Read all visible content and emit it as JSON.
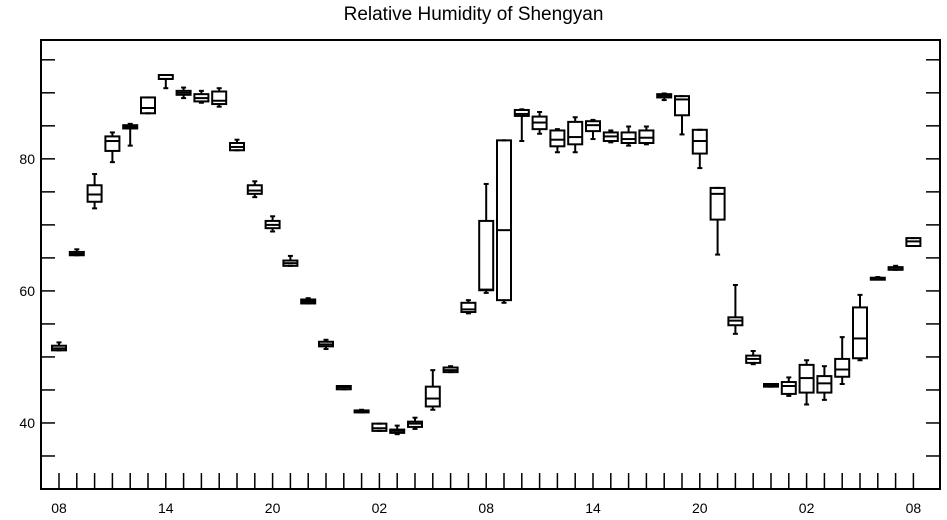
{
  "chart_data": {
    "type": "boxplot",
    "title": "Relative Humidity of Shengyan",
    "xlabel": "",
    "ylabel": "",
    "ylim": [
      30,
      98
    ],
    "y_ticks": [
      40,
      60,
      80
    ],
    "x_tick_labels": [
      "08",
      "14",
      "20",
      "02",
      "08",
      "14",
      "20",
      "02",
      "08"
    ],
    "x_tick_positions": [
      0,
      6,
      12,
      18,
      24,
      30,
      36,
      42,
      48
    ],
    "grid": false,
    "boxes": [
      {
        "x": 0,
        "whisker_low": 51.0,
        "q1": 51.0,
        "median": 51.3,
        "q3": 51.7,
        "whisker_high": 52.2
      },
      {
        "x": 1,
        "whisker_low": 65.4,
        "q1": 65.4,
        "median": 65.6,
        "q3": 65.9,
        "whisker_high": 66.3
      },
      {
        "x": 2,
        "whisker_low": 72.5,
        "q1": 73.5,
        "median": 74.6,
        "q3": 76.0,
        "whisker_high": 77.7
      },
      {
        "x": 3,
        "whisker_low": 79.5,
        "q1": 81.2,
        "median": 82.7,
        "q3": 83.4,
        "whisker_high": 84.0
      },
      {
        "x": 4,
        "whisker_low": 82.0,
        "q1": 84.6,
        "median": 84.9,
        "q3": 85.1,
        "whisker_high": 85.3
      },
      {
        "x": 5,
        "whisker_low": 86.9,
        "q1": 86.9,
        "median": 87.7,
        "q3": 89.3,
        "whisker_high": 89.3
      },
      {
        "x": 6,
        "whisker_low": 90.7,
        "q1": 92.1,
        "median": 92.1,
        "q3": 92.7,
        "whisker_high": 92.7
      },
      {
        "x": 7,
        "whisker_low": 89.2,
        "q1": 89.7,
        "median": 90.0,
        "q3": 90.3,
        "whisker_high": 90.8
      },
      {
        "x": 8,
        "whisker_low": 88.5,
        "q1": 88.7,
        "median": 89.2,
        "q3": 89.8,
        "whisker_high": 90.3
      },
      {
        "x": 9,
        "whisker_low": 87.9,
        "q1": 88.3,
        "median": 88.8,
        "q3": 90.2,
        "whisker_high": 90.7
      },
      {
        "x": 10,
        "whisker_low": 81.3,
        "q1": 81.3,
        "median": 81.8,
        "q3": 82.4,
        "whisker_high": 82.9
      },
      {
        "x": 11,
        "whisker_low": 74.2,
        "q1": 74.7,
        "median": 75.2,
        "q3": 76.0,
        "whisker_high": 76.6
      },
      {
        "x": 12,
        "whisker_low": 69.0,
        "q1": 69.5,
        "median": 70.0,
        "q3": 70.6,
        "whisker_high": 71.3
      },
      {
        "x": 13,
        "whisker_low": 63.8,
        "q1": 63.8,
        "median": 64.2,
        "q3": 64.6,
        "whisker_high": 65.3
      },
      {
        "x": 14,
        "whisker_low": 58.1,
        "q1": 58.1,
        "median": 58.4,
        "q3": 58.7,
        "whisker_high": 58.9
      },
      {
        "x": 15,
        "whisker_low": 51.2,
        "q1": 51.6,
        "median": 51.9,
        "q3": 52.3,
        "whisker_high": 52.6
      },
      {
        "x": 16,
        "whisker_low": 45.1,
        "q1": 45.1,
        "median": 45.4,
        "q3": 45.6,
        "whisker_high": 45.6
      },
      {
        "x": 17,
        "whisker_low": 41.6,
        "q1": 41.7,
        "median": 41.8,
        "q3": 41.9,
        "whisker_high": 42.0
      },
      {
        "x": 18,
        "whisker_low": 38.8,
        "q1": 38.8,
        "median": 39.2,
        "q3": 39.9,
        "whisker_high": 39.9
      },
      {
        "x": 19,
        "whisker_low": 38.3,
        "q1": 38.5,
        "median": 38.8,
        "q3": 39.0,
        "whisker_high": 39.6
      },
      {
        "x": 20,
        "whisker_low": 39.1,
        "q1": 39.4,
        "median": 39.9,
        "q3": 40.2,
        "whisker_high": 40.8
      },
      {
        "x": 21,
        "whisker_low": 42.0,
        "q1": 42.5,
        "median": 43.7,
        "q3": 45.5,
        "whisker_high": 48.0
      },
      {
        "x": 22,
        "whisker_low": 47.7,
        "q1": 47.7,
        "median": 48.0,
        "q3": 48.4,
        "whisker_high": 48.6
      },
      {
        "x": 23,
        "whisker_low": 56.6,
        "q1": 56.8,
        "median": 57.2,
        "q3": 58.2,
        "whisker_high": 58.6
      },
      {
        "x": 24,
        "whisker_low": 59.7,
        "q1": 60.1,
        "median": 60.2,
        "q3": 70.6,
        "whisker_high": 76.2
      },
      {
        "x": 25,
        "whisker_low": 58.2,
        "q1": 58.6,
        "median": 69.2,
        "q3": 82.8,
        "whisker_high": 82.8
      },
      {
        "x": 26,
        "whisker_low": 82.7,
        "q1": 86.5,
        "median": 86.8,
        "q3": 87.4,
        "whisker_high": 87.5
      },
      {
        "x": 27,
        "whisker_low": 83.8,
        "q1": 84.5,
        "median": 85.5,
        "q3": 86.4,
        "whisker_high": 87.1
      },
      {
        "x": 28,
        "whisker_low": 81.0,
        "q1": 81.9,
        "median": 82.9,
        "q3": 84.3,
        "whisker_high": 84.5
      },
      {
        "x": 29,
        "whisker_low": 81.0,
        "q1": 82.2,
        "median": 83.3,
        "q3": 85.6,
        "whisker_high": 86.3
      },
      {
        "x": 30,
        "whisker_low": 83.0,
        "q1": 84.2,
        "median": 85.1,
        "q3": 85.7,
        "whisker_high": 85.9
      },
      {
        "x": 31,
        "whisker_low": 82.5,
        "q1": 82.7,
        "median": 83.4,
        "q3": 84.0,
        "whisker_high": 84.3
      },
      {
        "x": 32,
        "whisker_low": 82.0,
        "q1": 82.4,
        "median": 83.0,
        "q3": 84.0,
        "whisker_high": 84.9
      },
      {
        "x": 33,
        "whisker_low": 82.2,
        "q1": 82.4,
        "median": 83.2,
        "q3": 84.3,
        "whisker_high": 84.9
      },
      {
        "x": 34,
        "whisker_low": 88.9,
        "q1": 89.3,
        "median": 89.6,
        "q3": 89.8,
        "whisker_high": 89.9
      },
      {
        "x": 35,
        "whisker_low": 83.7,
        "q1": 86.6,
        "median": 89.0,
        "q3": 89.5,
        "whisker_high": 89.5
      },
      {
        "x": 36,
        "whisker_low": 78.6,
        "q1": 80.8,
        "median": 82.7,
        "q3": 84.4,
        "whisker_high": 84.4
      },
      {
        "x": 37,
        "whisker_low": 65.5,
        "q1": 70.8,
        "median": 74.7,
        "q3": 75.6,
        "whisker_high": 75.6
      },
      {
        "x": 38,
        "whisker_low": 53.5,
        "q1": 54.8,
        "median": 55.5,
        "q3": 56.0,
        "whisker_high": 60.9
      },
      {
        "x": 39,
        "whisker_low": 48.9,
        "q1": 49.1,
        "median": 49.7,
        "q3": 50.2,
        "whisker_high": 50.9
      },
      {
        "x": 40,
        "whisker_low": 45.5,
        "q1": 45.5,
        "median": 45.7,
        "q3": 45.9,
        "whisker_high": 45.9
      },
      {
        "x": 41,
        "whisker_low": 44.1,
        "q1": 44.4,
        "median": 45.6,
        "q3": 46.2,
        "whisker_high": 46.9
      },
      {
        "x": 42,
        "whisker_low": 42.8,
        "q1": 44.6,
        "median": 46.8,
        "q3": 48.8,
        "whisker_high": 49.5
      },
      {
        "x": 43,
        "whisker_low": 43.5,
        "q1": 44.6,
        "median": 46.0,
        "q3": 47.1,
        "whisker_high": 48.6
      },
      {
        "x": 44,
        "whisker_low": 45.9,
        "q1": 47.0,
        "median": 48.1,
        "q3": 49.7,
        "whisker_high": 53.0
      },
      {
        "x": 45,
        "whisker_low": 49.5,
        "q1": 49.8,
        "median": 52.8,
        "q3": 57.5,
        "whisker_high": 59.4
      },
      {
        "x": 46,
        "whisker_low": 61.8,
        "q1": 61.8,
        "median": 61.9,
        "q3": 62.0,
        "whisker_high": 62.1
      },
      {
        "x": 47,
        "whisker_low": 63.2,
        "q1": 63.2,
        "median": 63.3,
        "q3": 63.6,
        "whisker_high": 63.8
      },
      {
        "x": 48,
        "whisker_low": 66.8,
        "q1": 66.8,
        "median": 67.5,
        "q3": 68.0,
        "whisker_high": 68.0
      }
    ]
  }
}
